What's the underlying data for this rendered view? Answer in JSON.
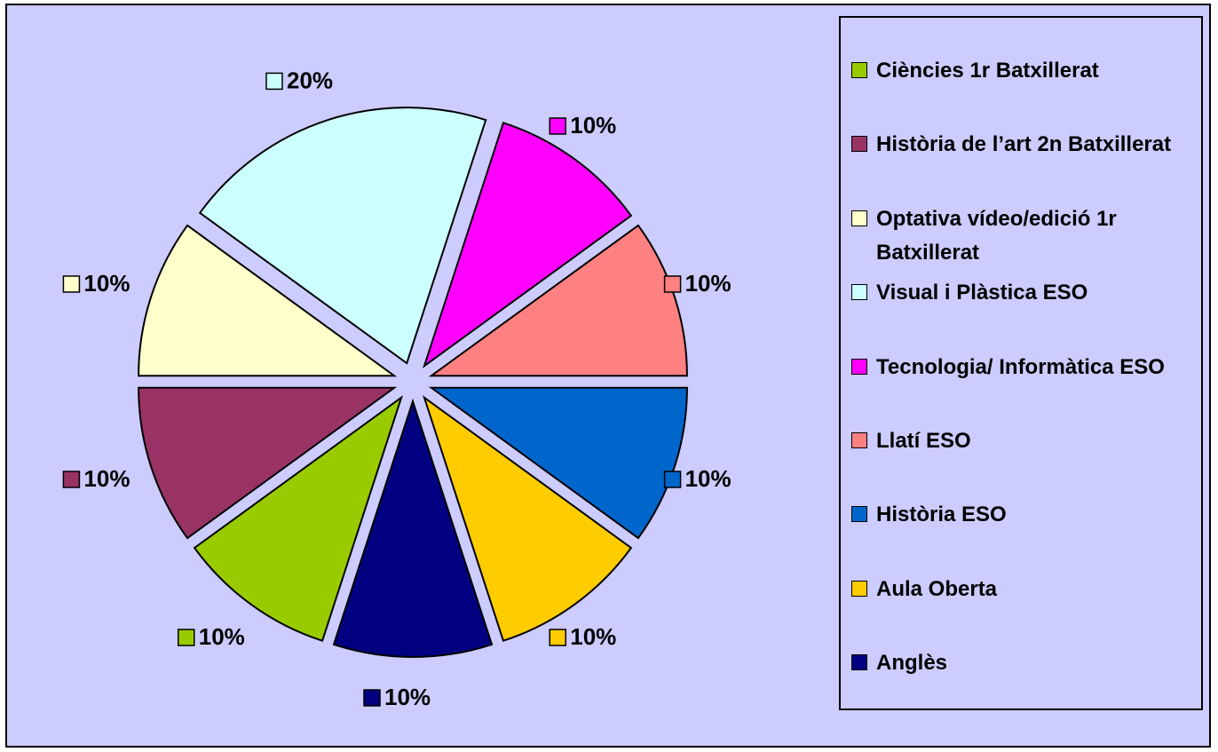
{
  "chart_data": {
    "type": "pie",
    "categories": [
      "Ciències 1r Batxillerat",
      "Història de l’art 2n Batxillerat",
      "Optativa vídeo/edició 1r Batxillerat",
      "Visual i Plàstica ESO",
      "Tecnologia/ Informàtica ESO",
      "Llatí  ESO",
      "Història ESO",
      "Aula Oberta",
      "Anglès"
    ],
    "values": [
      10,
      10,
      10,
      20,
      10,
      10,
      10,
      10,
      10
    ],
    "value_labels": [
      "10%",
      "10%",
      "10%",
      "20%",
      "10%",
      "10%",
      "10%",
      "10%",
      "10%"
    ],
    "colors": [
      "#99cc00",
      "#993366",
      "#ffffcc",
      "#ccffff",
      "#ff00ff",
      "#ff8080",
      "#0066cc",
      "#ffcc00",
      "#000080"
    ],
    "legend": "right"
  }
}
